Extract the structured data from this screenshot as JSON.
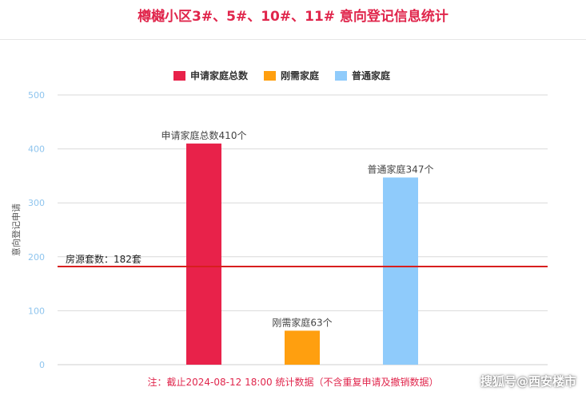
{
  "title": "樽樾小区3#、5#、10#、11# 意向登记信息统计",
  "footnote": "注：截止2024-08-12 18:00 统计数据（不含重复申请及撤销数据）",
  "watermark": "搜狐号@西安楼市",
  "chart_data": {
    "type": "bar",
    "title": "樽樾小区3#、5#、10#、11# 意向登记信息统计",
    "ylabel": "意向登记申请",
    "xlabel": "",
    "ylim": [
      0,
      500
    ],
    "yticks": [
      0,
      100,
      200,
      300,
      400,
      500
    ],
    "grid": true,
    "legend_position": "top-center",
    "series": [
      {
        "name": "申请家庭总数",
        "color": "#e8224a",
        "value": 410,
        "label": "申请家庭总数410个"
      },
      {
        "name": "刚需家庭",
        "color": "#ff9f0f",
        "value": 63,
        "label": "刚需家庭63个"
      },
      {
        "name": "普通家庭",
        "color": "#8fcbfb",
        "value": 347,
        "label": "普通家庭347个"
      }
    ],
    "reference_line": {
      "value": 182,
      "label": "房源套数：182套",
      "color": "#d81e1e"
    }
  }
}
